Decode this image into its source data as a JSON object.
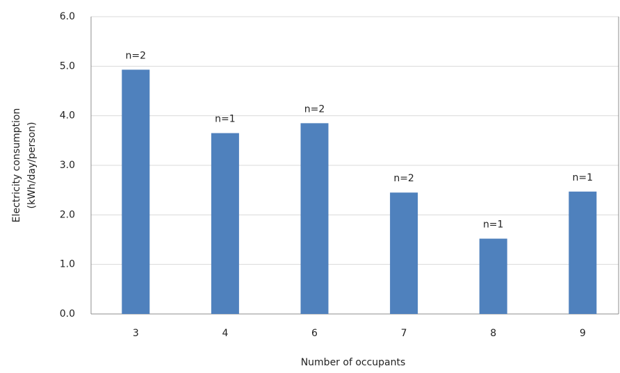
{
  "chart_data": {
    "type": "bar",
    "y_label": [
      "Electricity consumption",
      "(kWh/day/person)"
    ],
    "x_label": "Number of occupants",
    "categories": [
      "3",
      "4",
      "6",
      "7",
      "8",
      "9"
    ],
    "values": [
      4.93,
      3.65,
      3.85,
      2.45,
      1.52,
      2.47
    ],
    "annotations": [
      "n=2",
      "n=1",
      "n=2",
      "n=2",
      "n=1",
      "n=1"
    ],
    "color": "#4f81bd",
    "ylim": [
      0,
      6
    ],
    "yticks": [
      {
        "value": 0,
        "label": "0.0"
      },
      {
        "value": 1,
        "label": "1.0"
      },
      {
        "value": 2,
        "label": "2.0"
      },
      {
        "value": 3,
        "label": "3.0"
      },
      {
        "value": 4,
        "label": "4.0"
      },
      {
        "value": 5,
        "label": "5.0"
      },
      {
        "value": 6,
        "label": "6.0"
      }
    ],
    "grid": true
  }
}
